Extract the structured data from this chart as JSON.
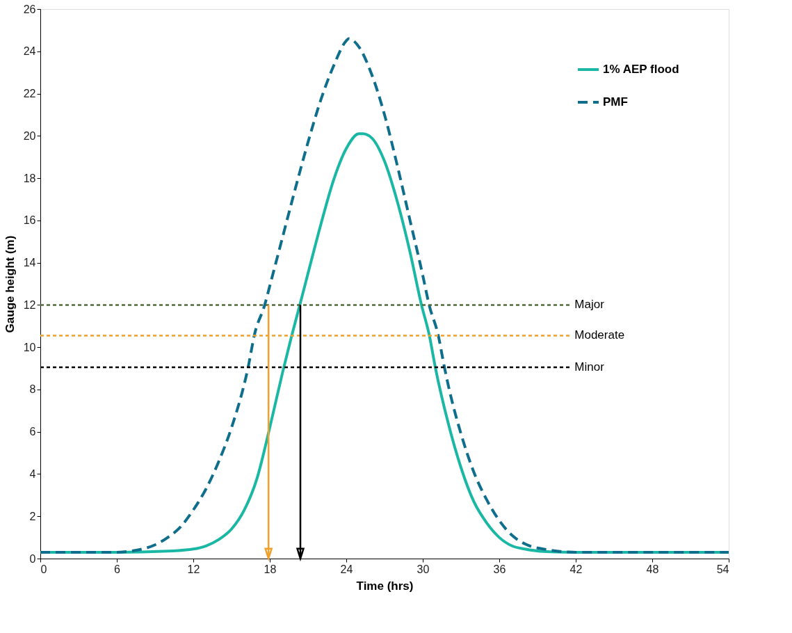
{
  "chart_data": {
    "type": "line",
    "xlabel": "Time (hrs)",
    "ylabel": "Gauge height (m)",
    "xlim": [
      0,
      54
    ],
    "xticks": [
      0,
      6,
      12,
      18,
      24,
      30,
      36,
      42,
      48,
      54
    ],
    "ylim": [
      0,
      26
    ],
    "yticks": [
      0,
      2,
      4,
      6,
      8,
      10,
      12,
      14,
      16,
      18,
      20,
      22,
      24,
      26
    ],
    "grid": false,
    "legend": "top right",
    "series": [
      {
        "name": "1% AEP flood",
        "color": "#1ab8a4",
        "line_style": "solid",
        "x": [
          0,
          6,
          10,
          12,
          13,
          14,
          15,
          16,
          17,
          18,
          19,
          19.7,
          20.4,
          21,
          22,
          23,
          24,
          25,
          25.3,
          26,
          27,
          28,
          29,
          29.9,
          30.5,
          31,
          32,
          33,
          34,
          35,
          36,
          37,
          38,
          40,
          42,
          54
        ],
        "values": [
          0.3,
          0.3,
          0.35,
          0.45,
          0.6,
          0.9,
          1.4,
          2.3,
          3.8,
          6.2,
          8.8,
          10.5,
          12.1,
          13.5,
          15.8,
          17.9,
          19.4,
          20.1,
          20.1,
          19.9,
          18.8,
          16.9,
          14.5,
          12,
          10.6,
          9.0,
          6.4,
          4.3,
          2.7,
          1.7,
          1.0,
          0.6,
          0.45,
          0.32,
          0.3,
          0.3
        ]
      },
      {
        "name": "PMF",
        "color": "#0e6e8c",
        "line_style": "dashed",
        "x": [
          0,
          6,
          7,
          8,
          9,
          10,
          11,
          12,
          13,
          14,
          15,
          16.3,
          16.8,
          17.6,
          18,
          19,
          20,
          21,
          22,
          23,
          24,
          24.2,
          25,
          26,
          27,
          28,
          29,
          30,
          30.5,
          31.2,
          31.7,
          32,
          33,
          34,
          35,
          36,
          37,
          38,
          40,
          42,
          44,
          54
        ],
        "values": [
          0.3,
          0.3,
          0.35,
          0.45,
          0.65,
          1.0,
          1.5,
          2.3,
          3.3,
          4.6,
          6.2,
          9.05,
          10.6,
          12,
          12.9,
          15.2,
          17.5,
          19.7,
          21.7,
          23.3,
          24.5,
          24.6,
          24.2,
          22.9,
          21.0,
          18.6,
          16.0,
          13.4,
          12,
          10.6,
          9.05,
          8.2,
          5.9,
          4.1,
          2.8,
          1.8,
          1.1,
          0.7,
          0.4,
          0.3,
          0.3,
          0.3
        ]
      }
    ],
    "ref_lines": [
      {
        "axis": "y",
        "value": 12,
        "label": "Major",
        "color": "#4f6b3a",
        "line_style": "dotted"
      },
      {
        "axis": "y",
        "value": 10.55,
        "label": "Moderate",
        "color": "#f0a02c",
        "line_style": "dotted"
      },
      {
        "axis": "y",
        "value": 9.05,
        "label": "Minor",
        "color": "#000000",
        "line_style": "dotted"
      },
      {
        "axis": "x",
        "value": 17.9,
        "color": "#f0a02c",
        "line_style": "solid"
      },
      {
        "axis": "x",
        "value": 20.4,
        "color": "#000000",
        "line_style": "solid"
      }
    ]
  }
}
